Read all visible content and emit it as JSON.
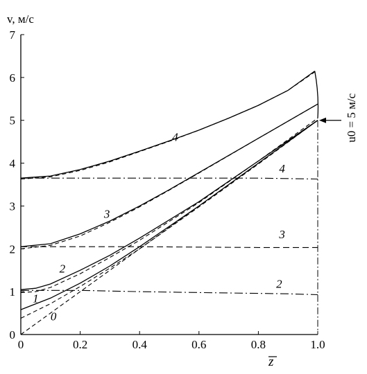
{
  "chart_data": {
    "type": "line",
    "ylabel": "v, м/с",
    "xlabel": "z",
    "xlim": [
      0,
      1.0
    ],
    "ylim": [
      0,
      7
    ],
    "x_ticks": [
      "0",
      "0.2",
      "0.4",
      "0.6",
      "0.8",
      "1.0"
    ],
    "y_ticks": [
      "0",
      "1",
      "2",
      "3",
      "4",
      "5",
      "6",
      "7"
    ],
    "annotation": {
      "text": "u0 = 5 м/с",
      "value": 5,
      "x": 1.0,
      "y": 5.0
    },
    "series": [
      {
        "label": "0",
        "style": "dashed",
        "x": [
          0,
          0.2,
          0.4,
          0.6,
          0.8,
          1.0
        ],
        "y": [
          0.0,
          1.0,
          2.0,
          3.0,
          4.0,
          5.0
        ]
      },
      {
        "label": "1",
        "style": "solid",
        "x": [
          0,
          0.1,
          0.2,
          0.3,
          0.4,
          0.6,
          0.8,
          1.0
        ],
        "y": [
          0.58,
          0.85,
          1.2,
          1.6,
          2.05,
          3.0,
          4.0,
          5.0
        ]
      },
      {
        "label": "1",
        "style": "dashed",
        "x": [
          0,
          0.1,
          0.2,
          0.3,
          0.4,
          0.6,
          0.8,
          1.0
        ],
        "y": [
          0.38,
          0.72,
          1.12,
          1.55,
          2.0,
          2.98,
          3.98,
          5.0
        ]
      },
      {
        "label": "2",
        "style": "solid",
        "x": [
          0,
          0.05,
          0.1,
          0.2,
          0.3,
          0.4,
          0.6,
          0.8,
          1.0
        ],
        "y": [
          1.05,
          1.08,
          1.18,
          1.5,
          1.85,
          2.25,
          3.1,
          4.05,
          5.0
        ]
      },
      {
        "label": "2",
        "style": "dashed",
        "x": [
          0,
          0.05,
          0.1,
          0.2,
          0.3,
          0.4,
          0.6,
          0.8,
          1.0
        ],
        "y": [
          0.98,
          1.0,
          1.1,
          1.42,
          1.8,
          2.2,
          3.08,
          4.05,
          5.05
        ]
      },
      {
        "label": "3",
        "style": "solid",
        "x": [
          0,
          0.1,
          0.2,
          0.3,
          0.4,
          0.5,
          0.6,
          0.8,
          1.0
        ],
        "y": [
          2.05,
          2.12,
          2.35,
          2.65,
          3.0,
          3.38,
          3.78,
          4.58,
          5.38
        ]
      },
      {
        "label": "3",
        "style": "dashed",
        "x": [
          0,
          0.1,
          0.2,
          0.3,
          0.4,
          0.5,
          0.6,
          0.8,
          1.0
        ],
        "y": [
          2.0,
          2.08,
          2.3,
          2.62,
          2.98,
          3.37,
          3.77,
          4.58,
          5.38
        ]
      },
      {
        "label": "4",
        "style": "solid",
        "x": [
          0,
          0.1,
          0.2,
          0.3,
          0.4,
          0.5,
          0.6,
          0.7,
          0.8,
          0.9,
          0.99
        ],
        "y": [
          3.65,
          3.7,
          3.85,
          4.05,
          4.28,
          4.52,
          4.77,
          5.05,
          5.35,
          5.7,
          6.15
        ]
      },
      {
        "label": "4",
        "style": "dashed",
        "x": [
          0,
          0.1,
          0.2,
          0.3,
          0.4,
          0.5,
          0.6,
          0.7,
          0.8,
          0.9,
          0.99
        ],
        "y": [
          3.63,
          3.68,
          3.83,
          4.03,
          4.27,
          4.51,
          4.77,
          5.05,
          5.35,
          5.7,
          6.13
        ]
      },
      {
        "label": "2",
        "style": "dashdot",
        "x": [
          0,
          0.2,
          0.4,
          0.6,
          0.8,
          0.9,
          1.0
        ],
        "y": [
          1.03,
          1.03,
          1.0,
          0.98,
          0.96,
          0.95,
          0.93
        ]
      },
      {
        "label": "3",
        "style": "dashed-horizontal",
        "x": [
          0,
          0.2,
          0.4,
          0.6,
          0.8,
          1.0
        ],
        "y": [
          2.05,
          2.05,
          2.05,
          2.04,
          2.03,
          2.03
        ]
      },
      {
        "label": "4",
        "style": "dashdot",
        "x": [
          0,
          0.2,
          0.4,
          0.6,
          0.8,
          1.0
        ],
        "y": [
          3.65,
          3.65,
          3.65,
          3.65,
          3.65,
          3.63
        ]
      }
    ],
    "curve_labels": [
      {
        "text": "0",
        "x": 0.11,
        "y": 0.33
      },
      {
        "text": "1",
        "x": 0.05,
        "y": 0.75
      },
      {
        "text": "2",
        "x": 0.14,
        "y": 1.45
      },
      {
        "text": "3",
        "x": 0.29,
        "y": 2.72
      },
      {
        "text": "4",
        "x": 0.52,
        "y": 4.52
      },
      {
        "text": "2",
        "x": 0.87,
        "y": 1.09
      },
      {
        "text": "3",
        "x": 0.88,
        "y": 2.25
      },
      {
        "text": "4",
        "x": 0.88,
        "y": 3.78
      }
    ],
    "grid": false
  }
}
